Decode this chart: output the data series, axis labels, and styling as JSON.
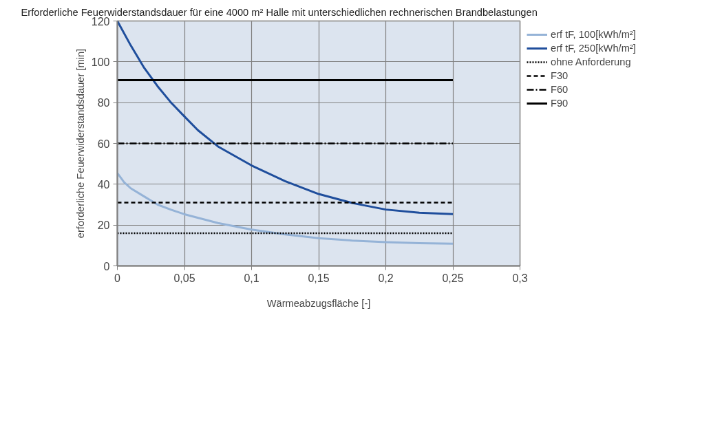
{
  "chart_data": {
    "type": "line",
    "title": "Erforderliche Feuerwiderstandsdauer für eine 4000 m² Halle mit unterschiedlichen rechnerischen Brandbelastungen",
    "xlabel": "Wärmeabzugsfläche [-]",
    "ylabel": "erforderliche Feuerwiderstandsdauer [min]",
    "xlim": [
      0,
      0.3
    ],
    "xticks": [
      {
        "value": 0,
        "label": "0"
      },
      {
        "value": 0.05,
        "label": "0,05"
      },
      {
        "value": 0.1,
        "label": "0,1"
      },
      {
        "value": 0.15,
        "label": "0,15"
      },
      {
        "value": 0.2,
        "label": "0,2"
      },
      {
        "value": 0.25,
        "label": "0,25"
      },
      {
        "value": 0.3,
        "label": "0,3"
      }
    ],
    "ylim": [
      0,
      120
    ],
    "yticks": [
      0,
      20,
      40,
      60,
      80,
      100,
      120
    ],
    "grid": true,
    "legend": "top right",
    "marker": "none",
    "series": [
      {
        "name": "erf tF, 100[kWh/m²]",
        "color": "#95b3d7",
        "line_style": "solid",
        "x": [
          0,
          0.005,
          0.01,
          0.02,
          0.03,
          0.04,
          0.05,
          0.075,
          0.1,
          0.125,
          0.15,
          0.175,
          0.2,
          0.225,
          0.25
        ],
        "values": [
          45.5,
          41,
          38,
          34,
          30,
          27.5,
          25.3,
          21,
          17.8,
          15.4,
          13.6,
          12.4,
          11.6,
          11.1,
          10.9
        ]
      },
      {
        "name": "erf tF, 250[kWh/m²]",
        "color": "#1f4e9c",
        "line_style": "solid",
        "x": [
          0,
          0.01,
          0.02,
          0.03,
          0.04,
          0.05,
          0.06,
          0.075,
          0.1,
          0.125,
          0.15,
          0.175,
          0.2,
          0.225,
          0.25
        ],
        "values": [
          120,
          108,
          97,
          88,
          80,
          73.2,
          66.5,
          58.5,
          49.2,
          41.5,
          35.2,
          30.8,
          27.6,
          26,
          25.4
        ]
      },
      {
        "name": "ohne Anforderung",
        "color": "#000000",
        "line_style": "dotted",
        "x": [
          0,
          0.25
        ],
        "values": [
          16,
          16
        ]
      },
      {
        "name": "F30",
        "color": "#000000",
        "line_style": "dashed",
        "x": [
          0,
          0.25
        ],
        "values": [
          31,
          31
        ]
      },
      {
        "name": "F60",
        "color": "#000000",
        "line_style": "dashdot",
        "x": [
          0,
          0.25
        ],
        "values": [
          60,
          60
        ]
      },
      {
        "name": "F90",
        "color": "#000000",
        "line_style": "solid",
        "x": [
          0,
          0.25
        ],
        "values": [
          91,
          91
        ]
      }
    ]
  }
}
